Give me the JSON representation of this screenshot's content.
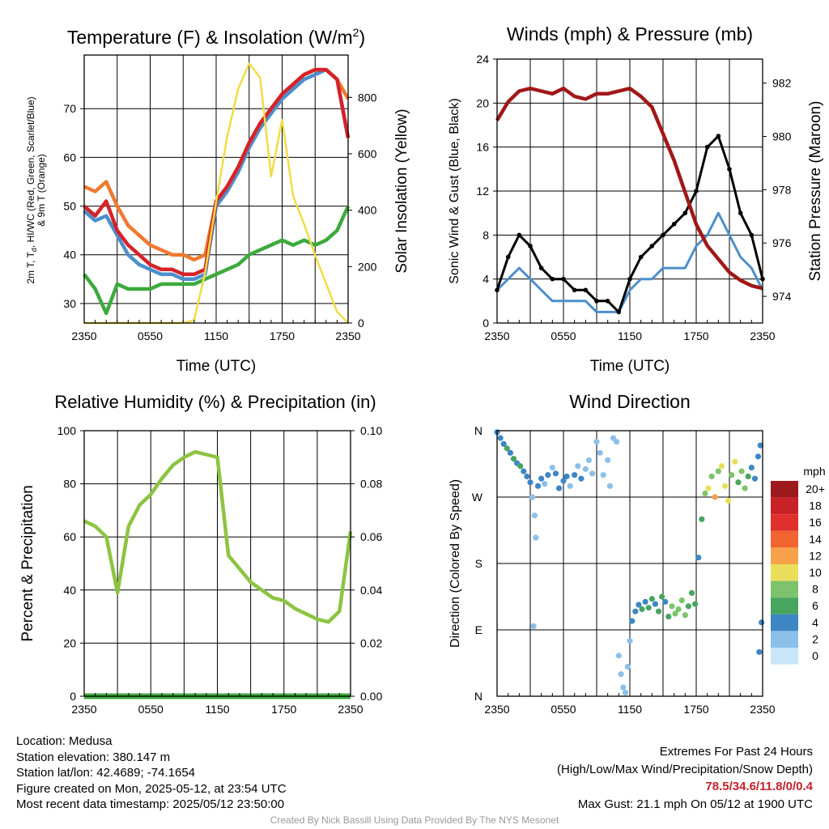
{
  "chart_data": [
    {
      "type": "line",
      "title": "Temperature (F) & Insolation (W/m²)",
      "title_main": "Temperature (F) & Insolation (W/m",
      "title_sup": "2",
      "title_end": ")",
      "xlabel": "Time (UTC)",
      "ylabel_line1": "2m T, T",
      "ylabel_sub": "d",
      "ylabel_line1_end": ", HI/WC (Red, Green, Scarlet/Blue)",
      "ylabel_line2": "& 9m T (Orange)",
      "y2label": "Solar Insolation (Yellow)",
      "x_ticks": [
        "2350",
        "0550",
        "1150",
        "1750",
        "2350"
      ],
      "ylim": [
        26,
        81
      ],
      "y_ticks": [
        30,
        40,
        50,
        60,
        70
      ],
      "y2lim": [
        0,
        950
      ],
      "y2_ticks": [
        0,
        200,
        400,
        600,
        800
      ],
      "x": [
        0,
        1,
        2,
        3,
        4,
        5,
        6,
        7,
        8,
        9,
        10,
        11,
        12,
        13,
        14,
        15,
        16,
        17,
        18,
        19,
        20,
        21,
        22,
        23,
        24
      ],
      "series": [
        {
          "color": "#4d8fcc",
          "axis": "left",
          "values": [
            49,
            47,
            48,
            44,
            40,
            38,
            37,
            36,
            36,
            35,
            35,
            36,
            50,
            53,
            57,
            62,
            66,
            69,
            72,
            74,
            76,
            77,
            78,
            76,
            64
          ]
        },
        {
          "color": "#ee7a30",
          "axis": "left",
          "values": [
            54,
            53,
            55,
            50,
            46,
            44,
            42,
            41,
            40,
            40,
            39,
            40,
            51,
            54,
            58,
            63,
            67,
            70,
            73,
            75,
            77,
            78,
            78,
            76,
            72
          ]
        },
        {
          "color": "#d62228",
          "axis": "left",
          "values": [
            50,
            48,
            51,
            45,
            42,
            40,
            38,
            37,
            37,
            36,
            36,
            37,
            51,
            54,
            58,
            63,
            67,
            70,
            73,
            75,
            77,
            78,
            78,
            76,
            64
          ]
        },
        {
          "color": "#3daa3d",
          "axis": "left",
          "values": [
            36,
            33,
            28,
            34,
            33,
            33,
            33,
            34,
            34,
            34,
            34,
            35,
            36,
            37,
            38,
            40,
            41,
            42,
            43,
            42,
            43,
            42,
            43,
            45,
            50
          ]
        },
        {
          "color": "#f0dc46",
          "axis": "right",
          "values": [
            0,
            0,
            0,
            0,
            0,
            0,
            0,
            0,
            0,
            0,
            10,
            180,
            430,
            660,
            830,
            920,
            870,
            520,
            720,
            450,
            350,
            240,
            140,
            40,
            0
          ]
        }
      ]
    },
    {
      "type": "line",
      "title": "Winds (mph) & Pressure (mb)",
      "xlabel": "Time (UTC)",
      "ylabel": "Sonic Wind & Gust (Blue, Black)",
      "y2label": "Station Pressure (Maroon)",
      "x_ticks": [
        "2350",
        "0550",
        "1150",
        "1750",
        "2350"
      ],
      "ylim": [
        0,
        24
      ],
      "y_ticks": [
        0,
        4,
        8,
        12,
        16,
        20,
        24
      ],
      "y2lim": [
        973.0,
        982.9
      ],
      "y2_ticks": [
        974,
        976,
        978,
        980,
        982
      ],
      "x": [
        0,
        1,
        2,
        3,
        4,
        5,
        6,
        7,
        8,
        9,
        10,
        11,
        12,
        13,
        14,
        15,
        16,
        17,
        18,
        19,
        20,
        21,
        22,
        23,
        24
      ],
      "series": [
        {
          "color": "#4d8fcc",
          "axis": "left",
          "values": [
            3,
            4,
            5,
            4,
            3,
            2,
            2,
            2,
            2,
            1,
            1,
            1,
            3,
            4,
            4,
            5,
            5,
            5,
            7,
            8,
            10,
            8,
            6,
            5,
            3
          ]
        },
        {
          "color": "#000000",
          "axis": "left",
          "values": [
            3,
            6,
            8,
            7,
            5,
            4,
            4,
            3,
            3,
            2,
            2,
            1,
            4,
            6,
            7,
            8,
            9,
            10,
            12,
            16,
            17,
            14,
            10,
            8,
            4
          ]
        },
        {
          "color": "#a01818",
          "axis": "right",
          "values": [
            980.6,
            981.3,
            981.7,
            981.8,
            981.7,
            981.6,
            981.8,
            981.5,
            981.4,
            981.6,
            981.6,
            981.7,
            981.8,
            981.5,
            981.1,
            980.1,
            979.1,
            977.9,
            976.7,
            975.9,
            975.4,
            974.9,
            974.6,
            974.4,
            974.3
          ]
        }
      ]
    },
    {
      "type": "line",
      "title": "Relative Humidity (%) & Precipitation (in)",
      "ylabel": "Percent & Precipitation",
      "x_ticks": [
        "2350",
        "0550",
        "1150",
        "1750",
        "2350"
      ],
      "ylim": [
        0,
        100
      ],
      "y_ticks": [
        0,
        20,
        40,
        60,
        80,
        100
      ],
      "y2lim": [
        0,
        0.1
      ],
      "y2_ticks": [
        "0.00",
        "0.02",
        "0.04",
        "0.06",
        "0.08",
        "0.10"
      ],
      "x": [
        0,
        1,
        2,
        3,
        4,
        5,
        6,
        7,
        8,
        9,
        10,
        11,
        12,
        13,
        14,
        15,
        16,
        17,
        18,
        19,
        20,
        21,
        22,
        23,
        24
      ],
      "series": [
        {
          "color": "#8cc440",
          "axis": "left",
          "values": [
            66,
            64,
            60,
            39,
            64,
            72,
            76,
            82,
            87,
            90,
            92,
            91,
            90,
            53,
            48,
            43,
            40,
            37,
            36,
            33,
            31,
            29,
            28,
            32,
            62
          ]
        },
        {
          "color": "#3daa3d",
          "axis": "right",
          "values": [
            0,
            0,
            0,
            0,
            0,
            0,
            0,
            0,
            0,
            0,
            0,
            0,
            0,
            0,
            0,
            0,
            0,
            0,
            0,
            0,
            0,
            0,
            0,
            0,
            0
          ]
        }
      ]
    },
    {
      "type": "scatter",
      "title": "Wind Direction",
      "ylabel": "Direction (Colored By Speed)",
      "x_ticks": [
        "2350",
        "0550",
        "1150",
        "1750",
        "2350"
      ],
      "y_ticks": [
        "N",
        "E",
        "S",
        "W",
        "N"
      ],
      "ylim": [
        0,
        360
      ],
      "colorbar_title": "mph",
      "colorbar_labels": [
        "20+",
        "18",
        "16",
        "14",
        "12",
        "10",
        "8",
        "6",
        "4",
        "2",
        "0"
      ],
      "colorbar_colors": [
        "#9c1a1c",
        "#c82127",
        "#e0302c",
        "#f06530",
        "#f7a24a",
        "#e9de5b",
        "#7dc36b",
        "#47a55f",
        "#3e86c4",
        "#8cc0e8",
        "#c8e6f8"
      ],
      "points": [
        {
          "t": 0.0,
          "dir": 358,
          "spd": 4
        },
        {
          "t": 0.3,
          "dir": 350,
          "spd": 4
        },
        {
          "t": 0.6,
          "dir": 342,
          "spd": 3
        },
        {
          "t": 0.9,
          "dir": 336,
          "spd": 5
        },
        {
          "t": 1.2,
          "dir": 330,
          "spd": 4
        },
        {
          "t": 1.5,
          "dir": 322,
          "spd": 6
        },
        {
          "t": 1.8,
          "dir": 316,
          "spd": 4
        },
        {
          "t": 2.1,
          "dir": 312,
          "spd": 5
        },
        {
          "t": 2.4,
          "dir": 305,
          "spd": 4
        },
        {
          "t": 2.7,
          "dir": 298,
          "spd": 3
        },
        {
          "t": 3.0,
          "dir": 290,
          "spd": 4
        },
        {
          "t": 3.2,
          "dir": 270,
          "spd": 2
        },
        {
          "t": 3.4,
          "dir": 245,
          "spd": 2
        },
        {
          "t": 3.5,
          "dir": 215,
          "spd": 1
        },
        {
          "t": 3.3,
          "dir": 95,
          "spd": 2
        },
        {
          "t": 3.7,
          "dir": 285,
          "spd": 3
        },
        {
          "t": 4.0,
          "dir": 295,
          "spd": 3
        },
        {
          "t": 4.3,
          "dir": 288,
          "spd": 2
        },
        {
          "t": 4.6,
          "dir": 300,
          "spd": 4
        },
        {
          "t": 5.0,
          "dir": 310,
          "spd": 2
        },
        {
          "t": 5.3,
          "dir": 302,
          "spd": 3
        },
        {
          "t": 5.6,
          "dir": 282,
          "spd": 3
        },
        {
          "t": 6.0,
          "dir": 292,
          "spd": 4
        },
        {
          "t": 6.3,
          "dir": 298,
          "spd": 3
        },
        {
          "t": 6.6,
          "dir": 285,
          "spd": 2
        },
        {
          "t": 7.0,
          "dir": 300,
          "spd": 3
        },
        {
          "t": 7.3,
          "dir": 312,
          "spd": 2
        },
        {
          "t": 7.6,
          "dir": 295,
          "spd": 3
        },
        {
          "t": 8.0,
          "dir": 308,
          "spd": 2
        },
        {
          "t": 8.3,
          "dir": 320,
          "spd": 1
        },
        {
          "t": 8.6,
          "dir": 302,
          "spd": 2
        },
        {
          "t": 9.0,
          "dir": 345,
          "spd": 1
        },
        {
          "t": 9.3,
          "dir": 330,
          "spd": 1
        },
        {
          "t": 9.6,
          "dir": 300,
          "spd": 1
        },
        {
          "t": 10.0,
          "dir": 320,
          "spd": 2
        },
        {
          "t": 10.2,
          "dir": 285,
          "spd": 1
        },
        {
          "t": 10.5,
          "dir": 350,
          "spd": 1
        },
        {
          "t": 10.8,
          "dir": 345,
          "spd": 1
        },
        {
          "t": 11.0,
          "dir": 55,
          "spd": 1
        },
        {
          "t": 11.2,
          "dir": 30,
          "spd": 1
        },
        {
          "t": 11.4,
          "dir": 12,
          "spd": 1
        },
        {
          "t": 11.6,
          "dir": 5,
          "spd": 1
        },
        {
          "t": 11.8,
          "dir": 40,
          "spd": 2
        },
        {
          "t": 12.0,
          "dir": 75,
          "spd": 2
        },
        {
          "t": 12.2,
          "dir": 102,
          "spd": 3
        },
        {
          "t": 12.5,
          "dir": 115,
          "spd": 4
        },
        {
          "t": 12.8,
          "dir": 124,
          "spd": 4
        },
        {
          "t": 13.1,
          "dir": 118,
          "spd": 5
        },
        {
          "t": 13.4,
          "dir": 128,
          "spd": 4
        },
        {
          "t": 13.7,
          "dir": 120,
          "spd": 6
        },
        {
          "t": 14.0,
          "dir": 132,
          "spd": 5
        },
        {
          "t": 14.3,
          "dir": 125,
          "spd": 4
        },
        {
          "t": 14.6,
          "dir": 115,
          "spd": 6
        },
        {
          "t": 14.9,
          "dir": 135,
          "spd": 6
        },
        {
          "t": 15.2,
          "dir": 128,
          "spd": 4
        },
        {
          "t": 15.5,
          "dir": 108,
          "spd": 6
        },
        {
          "t": 15.8,
          "dir": 122,
          "spd": 7
        },
        {
          "t": 16.1,
          "dir": 112,
          "spd": 8
        },
        {
          "t": 16.4,
          "dir": 118,
          "spd": 7
        },
        {
          "t": 16.7,
          "dir": 130,
          "spd": 8
        },
        {
          "t": 17.0,
          "dir": 110,
          "spd": 7
        },
        {
          "t": 17.3,
          "dir": 122,
          "spd": 6
        },
        {
          "t": 17.6,
          "dir": 140,
          "spd": 6
        },
        {
          "t": 17.9,
          "dir": 125,
          "spd": 6
        },
        {
          "t": 18.2,
          "dir": 188,
          "spd": 4
        },
        {
          "t": 18.5,
          "dir": 240,
          "spd": 6
        },
        {
          "t": 18.8,
          "dir": 275,
          "spd": 8
        },
        {
          "t": 19.1,
          "dir": 282,
          "spd": 10
        },
        {
          "t": 19.4,
          "dir": 298,
          "spd": 8
        },
        {
          "t": 19.7,
          "dir": 270,
          "spd": 11
        },
        {
          "t": 20.0,
          "dir": 305,
          "spd": 7
        },
        {
          "t": 20.3,
          "dir": 312,
          "spd": 10
        },
        {
          "t": 20.6,
          "dir": 285,
          "spd": 9
        },
        {
          "t": 20.9,
          "dir": 265,
          "spd": 10
        },
        {
          "t": 21.2,
          "dir": 300,
          "spd": 8
        },
        {
          "t": 21.5,
          "dir": 318,
          "spd": 9
        },
        {
          "t": 21.8,
          "dir": 290,
          "spd": 6
        },
        {
          "t": 22.1,
          "dir": 305,
          "spd": 7
        },
        {
          "t": 22.4,
          "dir": 282,
          "spd": 8
        },
        {
          "t": 22.7,
          "dir": 298,
          "spd": 5
        },
        {
          "t": 23.0,
          "dir": 310,
          "spd": 4
        },
        {
          "t": 23.3,
          "dir": 295,
          "spd": 4
        },
        {
          "t": 23.6,
          "dir": 325,
          "spd": 3
        },
        {
          "t": 23.8,
          "dir": 340,
          "spd": 3
        },
        {
          "t": 23.9,
          "dir": 100,
          "spd": 3
        },
        {
          "t": 23.7,
          "dir": 60,
          "spd": 4
        }
      ]
    }
  ],
  "footer": {
    "location": "Location: Medusa",
    "elevation": "Station elevation: 380.147 m",
    "latlon": "Station lat/lon: 42.4689; -74.1654",
    "created": "Figure created on Mon, 2025-05-12, at 23:54 UTC",
    "timestamp": "Most recent data timestamp: 2025/05/12 23:50:00",
    "extremes_title": "Extremes For Past 24 Hours",
    "extremes_legend": "(High/Low/Max Wind/Precipitation/Snow Depth)",
    "extremes_values": "78.5/34.6/11.8/0/0.4",
    "max_gust": "Max Gust: 21.1 mph On 05/12 at 1900 UTC",
    "credit": "Created By Nick Bassill Using Data Provided By The NYS Mesonet"
  }
}
